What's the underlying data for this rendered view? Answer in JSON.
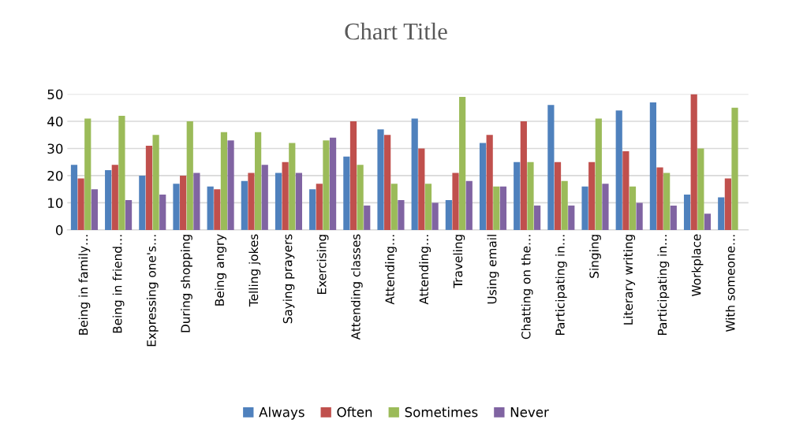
{
  "chart_data": {
    "type": "bar",
    "title": "Chart Title",
    "categories": [
      "Being in family…",
      "Being in friend…",
      "Expressing one's…",
      "During shopping",
      "Being angry",
      "Telling jokes",
      "Saying prayers",
      "Exercising",
      "Attending classes",
      "Attending…",
      "Attending…",
      "Traveling",
      "Using email",
      "Chatting on the…",
      "Participating in…",
      "Singing",
      "Literary writing",
      "Participating in…",
      "Workplace",
      "With someone…"
    ],
    "series": [
      {
        "name": "Always",
        "color": "#4f81bd",
        "values": [
          24,
          22,
          20,
          17,
          16,
          18,
          21,
          15,
          27,
          37,
          41,
          11,
          32,
          25,
          46,
          16,
          44,
          47,
          13,
          12
        ]
      },
      {
        "name": "Often",
        "color": "#c0504d",
        "values": [
          19,
          24,
          31,
          20,
          15,
          21,
          25,
          17,
          40,
          35,
          30,
          21,
          35,
          40,
          25,
          25,
          29,
          23,
          50,
          19
        ]
      },
      {
        "name": "Sometimes",
        "color": "#9bbb59",
        "values": [
          41,
          42,
          35,
          40,
          36,
          36,
          32,
          33,
          24,
          17,
          17,
          49,
          16,
          25,
          18,
          41,
          16,
          21,
          30,
          45
        ]
      },
      {
        "name": "Never",
        "color": "#8064a2",
        "values": [
          15,
          11,
          13,
          21,
          33,
          24,
          21,
          34,
          9,
          11,
          10,
          18,
          16,
          9,
          9,
          17,
          10,
          9,
          6,
          null
        ]
      }
    ],
    "ylim": [
      0,
      50
    ],
    "yticks": [
      0,
      10,
      20,
      30,
      40,
      50
    ],
    "grid": "y",
    "legend": "bottom"
  }
}
